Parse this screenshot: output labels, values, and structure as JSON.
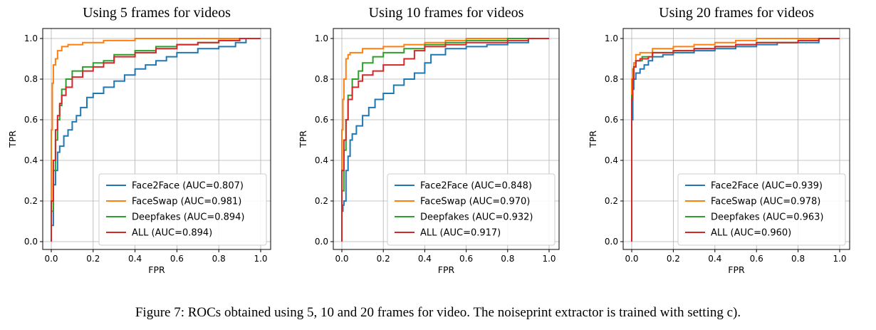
{
  "caption": "Figure 7: ROCs obtained using 5, 10 and 20 frames for video. The noiseprint extractor is trained with setting c).",
  "colors": {
    "Face2Face": "#1f77b4",
    "FaceSwap": "#ff7f0e",
    "Deepfakes": "#2ca02c",
    "ALL": "#d62728"
  },
  "chart_data": [
    {
      "type": "line",
      "title": "Using 5 frames for videos",
      "xlabel": "FPR",
      "ylabel": "TPR",
      "xlim": [
        0,
        1
      ],
      "ylim": [
        0,
        1
      ],
      "xticks": [
        "0.0",
        "0.2",
        "0.4",
        "0.6",
        "0.8",
        "1.0"
      ],
      "yticks": [
        "0.0",
        "0.2",
        "0.4",
        "0.6",
        "0.8",
        "1.0"
      ],
      "grid": true,
      "legend_position": "lower-right",
      "series": [
        {
          "name": "Face2Face (AUC=0.807)",
          "points": [
            [
              0,
              0
            ],
            [
              0.01,
              0.08
            ],
            [
              0.01,
              0.25
            ],
            [
              0.02,
              0.28
            ],
            [
              0.03,
              0.35
            ],
            [
              0.04,
              0.44
            ],
            [
              0.06,
              0.47
            ],
            [
              0.08,
              0.52
            ],
            [
              0.1,
              0.55
            ],
            [
              0.12,
              0.59
            ],
            [
              0.14,
              0.62
            ],
            [
              0.17,
              0.66
            ],
            [
              0.2,
              0.71
            ],
            [
              0.25,
              0.73
            ],
            [
              0.3,
              0.76
            ],
            [
              0.35,
              0.79
            ],
            [
              0.4,
              0.82
            ],
            [
              0.45,
              0.85
            ],
            [
              0.5,
              0.87
            ],
            [
              0.55,
              0.89
            ],
            [
              0.6,
              0.91
            ],
            [
              0.7,
              0.93
            ],
            [
              0.8,
              0.95
            ],
            [
              0.88,
              0.96
            ],
            [
              0.93,
              0.98
            ],
            [
              1.0,
              1.0
            ]
          ]
        },
        {
          "name": "FaceSwap (AUC=0.981)",
          "points": [
            [
              0,
              0
            ],
            [
              0.005,
              0.55
            ],
            [
              0.01,
              0.78
            ],
            [
              0.02,
              0.87
            ],
            [
              0.03,
              0.9
            ],
            [
              0.05,
              0.94
            ],
            [
              0.08,
              0.96
            ],
            [
              0.15,
              0.97
            ],
            [
              0.25,
              0.98
            ],
            [
              0.4,
              0.99
            ],
            [
              0.6,
              1.0
            ],
            [
              1.0,
              1.0
            ]
          ]
        },
        {
          "name": "Deepfakes (AUC=0.894)",
          "points": [
            [
              0,
              0
            ],
            [
              0.01,
              0.15
            ],
            [
              0.02,
              0.35
            ],
            [
              0.03,
              0.5
            ],
            [
              0.04,
              0.6
            ],
            [
              0.05,
              0.67
            ],
            [
              0.07,
              0.75
            ],
            [
              0.1,
              0.8
            ],
            [
              0.15,
              0.84
            ],
            [
              0.2,
              0.86
            ],
            [
              0.25,
              0.88
            ],
            [
              0.3,
              0.89
            ],
            [
              0.4,
              0.92
            ],
            [
              0.5,
              0.94
            ],
            [
              0.6,
              0.96
            ],
            [
              0.7,
              0.97
            ],
            [
              0.8,
              0.98
            ],
            [
              0.9,
              0.99
            ],
            [
              1.0,
              1.0
            ]
          ]
        },
        {
          "name": "ALL (AUC=0.894)",
          "points": [
            [
              0,
              0
            ],
            [
              0.01,
              0.2
            ],
            [
              0.02,
              0.4
            ],
            [
              0.03,
              0.55
            ],
            [
              0.04,
              0.62
            ],
            [
              0.05,
              0.68
            ],
            [
              0.07,
              0.72
            ],
            [
              0.1,
              0.76
            ],
            [
              0.15,
              0.81
            ],
            [
              0.2,
              0.84
            ],
            [
              0.25,
              0.86
            ],
            [
              0.3,
              0.88
            ],
            [
              0.4,
              0.91
            ],
            [
              0.5,
              0.93
            ],
            [
              0.6,
              0.95
            ],
            [
              0.7,
              0.97
            ],
            [
              0.8,
              0.98
            ],
            [
              0.9,
              0.99
            ],
            [
              1.0,
              1.0
            ]
          ]
        }
      ]
    },
    {
      "type": "line",
      "title": "Using 10 frames for videos",
      "xlabel": "FPR",
      "ylabel": "TPR",
      "xlim": [
        0,
        1
      ],
      "ylim": [
        0,
        1
      ],
      "xticks": [
        "0.0",
        "0.2",
        "0.4",
        "0.6",
        "0.8",
        "1.0"
      ],
      "yticks": [
        "0.0",
        "0.2",
        "0.4",
        "0.6",
        "0.8",
        "1.0"
      ],
      "grid": true,
      "legend_position": "lower-right",
      "series": [
        {
          "name": "Face2Face (AUC=0.848)",
          "points": [
            [
              0,
              0
            ],
            [
              0.005,
              0.15
            ],
            [
              0.01,
              0.18
            ],
            [
              0.02,
              0.2
            ],
            [
              0.03,
              0.35
            ],
            [
              0.04,
              0.42
            ],
            [
              0.05,
              0.5
            ],
            [
              0.07,
              0.53
            ],
            [
              0.1,
              0.57
            ],
            [
              0.13,
              0.62
            ],
            [
              0.16,
              0.66
            ],
            [
              0.2,
              0.7
            ],
            [
              0.25,
              0.73
            ],
            [
              0.3,
              0.77
            ],
            [
              0.35,
              0.8
            ],
            [
              0.4,
              0.83
            ],
            [
              0.43,
              0.88
            ],
            [
              0.5,
              0.92
            ],
            [
              0.6,
              0.95
            ],
            [
              0.7,
              0.96
            ],
            [
              0.8,
              0.97
            ],
            [
              0.9,
              0.98
            ],
            [
              1.0,
              1.0
            ]
          ]
        },
        {
          "name": "FaceSwap (AUC=0.970)",
          "points": [
            [
              0,
              0
            ],
            [
              0.005,
              0.55
            ],
            [
              0.01,
              0.7
            ],
            [
              0.02,
              0.8
            ],
            [
              0.03,
              0.9
            ],
            [
              0.04,
              0.92
            ],
            [
              0.1,
              0.93
            ],
            [
              0.2,
              0.95
            ],
            [
              0.3,
              0.96
            ],
            [
              0.4,
              0.97
            ],
            [
              0.5,
              0.98
            ],
            [
              0.6,
              0.99
            ],
            [
              0.8,
              1.0
            ],
            [
              1.0,
              1.0
            ]
          ]
        },
        {
          "name": "Deepfakes (AUC=0.932)",
          "points": [
            [
              0,
              0
            ],
            [
              0.01,
              0.25
            ],
            [
              0.02,
              0.45
            ],
            [
              0.03,
              0.6
            ],
            [
              0.05,
              0.72
            ],
            [
              0.08,
              0.8
            ],
            [
              0.1,
              0.84
            ],
            [
              0.15,
              0.88
            ],
            [
              0.2,
              0.91
            ],
            [
              0.3,
              0.93
            ],
            [
              0.4,
              0.95
            ],
            [
              0.5,
              0.97
            ],
            [
              0.6,
              0.98
            ],
            [
              0.8,
              0.99
            ],
            [
              1.0,
              1.0
            ]
          ]
        },
        {
          "name": "ALL (AUC=0.917)",
          "points": [
            [
              0,
              0
            ],
            [
              0.01,
              0.35
            ],
            [
              0.02,
              0.5
            ],
            [
              0.03,
              0.6
            ],
            [
              0.05,
              0.7
            ],
            [
              0.08,
              0.76
            ],
            [
              0.1,
              0.79
            ],
            [
              0.15,
              0.82
            ],
            [
              0.2,
              0.84
            ],
            [
              0.3,
              0.87
            ],
            [
              0.35,
              0.9
            ],
            [
              0.4,
              0.94
            ],
            [
              0.5,
              0.96
            ],
            [
              0.6,
              0.97
            ],
            [
              0.8,
              0.98
            ],
            [
              0.9,
              0.99
            ],
            [
              1.0,
              1.0
            ]
          ]
        }
      ]
    },
    {
      "type": "line",
      "title": "Using 20 frames for videos",
      "xlabel": "FPR",
      "ylabel": "TPR",
      "xlim": [
        0,
        1
      ],
      "ylim": [
        0,
        1
      ],
      "xticks": [
        "0.0",
        "0.2",
        "0.4",
        "0.6",
        "0.8",
        "1.0"
      ],
      "yticks": [
        "0.0",
        "0.2",
        "0.4",
        "0.6",
        "0.8",
        "1.0"
      ],
      "grid": true,
      "legend_position": "lower-right",
      "series": [
        {
          "name": "Face2Face (AUC=0.939)",
          "points": [
            [
              0,
              0
            ],
            [
              0.005,
              0.6
            ],
            [
              0.01,
              0.75
            ],
            [
              0.02,
              0.8
            ],
            [
              0.04,
              0.83
            ],
            [
              0.06,
              0.85
            ],
            [
              0.08,
              0.87
            ],
            [
              0.1,
              0.89
            ],
            [
              0.15,
              0.91
            ],
            [
              0.2,
              0.92
            ],
            [
              0.3,
              0.93
            ],
            [
              0.4,
              0.94
            ],
            [
              0.5,
              0.95
            ],
            [
              0.6,
              0.96
            ],
            [
              0.7,
              0.97
            ],
            [
              0.9,
              0.98
            ],
            [
              1.0,
              1.0
            ]
          ]
        },
        {
          "name": "FaceSwap (AUC=0.978)",
          "points": [
            [
              0,
              0
            ],
            [
              0.005,
              0.8
            ],
            [
              0.01,
              0.85
            ],
            [
              0.02,
              0.88
            ],
            [
              0.04,
              0.92
            ],
            [
              0.1,
              0.93
            ],
            [
              0.2,
              0.95
            ],
            [
              0.3,
              0.96
            ],
            [
              0.4,
              0.97
            ],
            [
              0.5,
              0.98
            ],
            [
              0.6,
              0.99
            ],
            [
              0.7,
              1.0
            ],
            [
              1.0,
              1.0
            ]
          ]
        },
        {
          "name": "Deepfakes (AUC=0.963)",
          "points": [
            [
              0,
              0
            ],
            [
              0.005,
              0.72
            ],
            [
              0.01,
              0.8
            ],
            [
              0.02,
              0.86
            ],
            [
              0.05,
              0.89
            ],
            [
              0.1,
              0.91
            ],
            [
              0.2,
              0.93
            ],
            [
              0.3,
              0.94
            ],
            [
              0.4,
              0.95
            ],
            [
              0.5,
              0.96
            ],
            [
              0.6,
              0.97
            ],
            [
              0.8,
              0.98
            ],
            [
              0.9,
              0.99
            ],
            [
              1.0,
              1.0
            ]
          ]
        },
        {
          "name": "ALL (AUC=0.960)",
          "points": [
            [
              0,
              0
            ],
            [
              0.005,
              0.7
            ],
            [
              0.01,
              0.8
            ],
            [
              0.02,
              0.86
            ],
            [
              0.04,
              0.89
            ],
            [
              0.08,
              0.9
            ],
            [
              0.1,
              0.91
            ],
            [
              0.2,
              0.93
            ],
            [
              0.3,
              0.94
            ],
            [
              0.4,
              0.95
            ],
            [
              0.5,
              0.96
            ],
            [
              0.6,
              0.97
            ],
            [
              0.8,
              0.98
            ],
            [
              0.9,
              0.99
            ],
            [
              1.0,
              1.0
            ]
          ]
        }
      ]
    }
  ]
}
